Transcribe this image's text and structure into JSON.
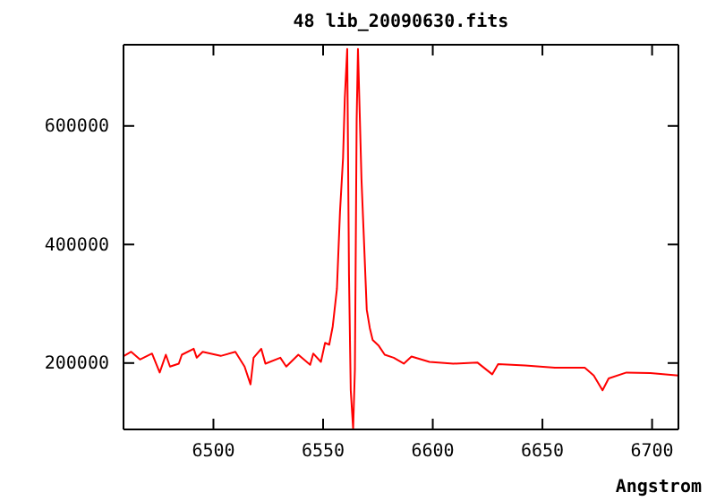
{
  "chart_data": {
    "type": "line",
    "title": "48 lib_20090630.fits",
    "xlabel": "Angstrom",
    "xlim": [
      6459,
      6712
    ],
    "xticks": [
      6500,
      6550,
      6600,
      6650,
      6700
    ],
    "ylim": [
      88000,
      737000
    ],
    "yticks": [
      200000,
      400000,
      600000
    ],
    "grid": false,
    "marker": "none",
    "line_style": "solid",
    "series": [
      {
        "color": "#ff0000",
        "x": [
          6459.2,
          6462.5,
          6466.5,
          6472,
          6475.5,
          6478.3,
          6480.2,
          6484.2,
          6485.6,
          6491,
          6492.4,
          6495.1,
          6503.3,
          6510,
          6514.2,
          6516.9,
          6518.3,
          6521.8,
          6523.7,
          6530.5,
          6533.2,
          6538.7,
          6544.1,
          6545.5,
          6549,
          6550.9,
          6552.8,
          6554.4,
          6556.3,
          6557.7,
          6559.1,
          6559.9,
          6561,
          6561.8,
          6562.6,
          6563.7,
          6564.5,
          6565.3,
          6565.9,
          6566.7,
          6567.5,
          6568.6,
          6569.9,
          6571.3,
          6572.6,
          6575.4,
          6578.1,
          6582.2,
          6586.8,
          6590.3,
          6598.5,
          6609.4,
          6620.3,
          6627.1,
          6629.8,
          6642.1,
          6655.7,
          6669.3,
          6673.4,
          6677.4,
          6680.2,
          6688.3,
          6699.2,
          6712
        ],
        "values": [
          212000,
          219000,
          206000,
          216000,
          184000,
          214000,
          194000,
          199000,
          214000,
          224000,
          209000,
          219000,
          212000,
          219000,
          194000,
          164000,
          209000,
          224000,
          199000,
          209000,
          194000,
          214000,
          197000,
          216000,
          202000,
          234000,
          231000,
          262000,
          325000,
          455000,
          546000,
          647000,
          730000,
          350000,
          154000,
          89000,
          189000,
          611000,
          730000,
          621000,
          510000,
          410000,
          290000,
          259000,
          239000,
          229000,
          214000,
          209000,
          199000,
          211000,
          202000,
          199000,
          201000,
          181000,
          198000,
          196000,
          192000,
          192000,
          179000,
          154000,
          174000,
          184000,
          183000,
          179000
        ]
      }
    ]
  }
}
